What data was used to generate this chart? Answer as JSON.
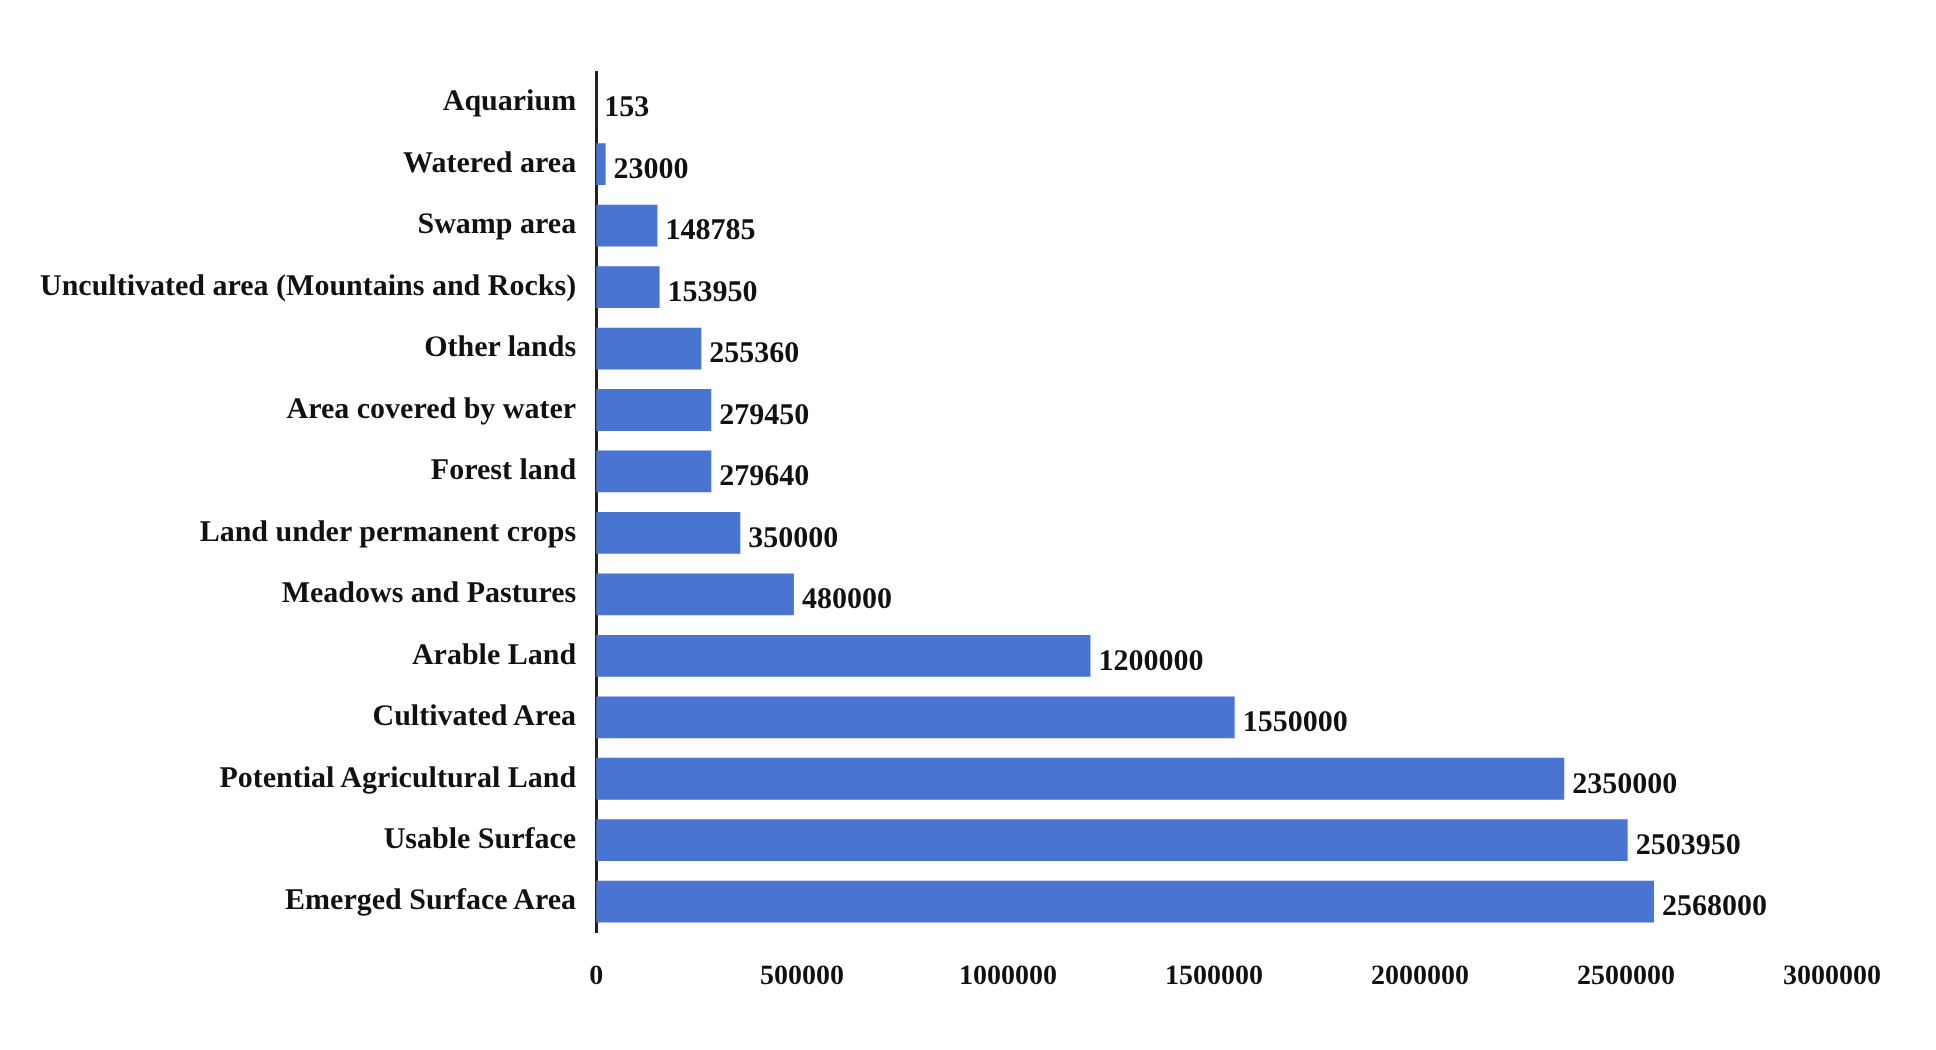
{
  "chart_data": {
    "type": "bar",
    "orientation": "horizontal",
    "categories": [
      "Aquarium",
      "Watered area",
      "Swamp area",
      "Uncultivated area (Mountains and Rocks)",
      "Other lands",
      "Area covered by water",
      "Forest land",
      "Land under permanent crops",
      "Meadows and Pastures",
      "Arable Land",
      "Cultivated Area",
      "Potential Agricultural Land",
      "Usable Surface",
      "Emerged Surface Area"
    ],
    "values": [
      153,
      23000,
      148785,
      153950,
      255360,
      279450,
      279640,
      350000,
      480000,
      1200000,
      1550000,
      2350000,
      2503950,
      2568000
    ],
    "color": "#4a74d2",
    "xlim": [
      0,
      3000000
    ],
    "xticks": [
      0,
      500000,
      1000000,
      1500000,
      2000000,
      2500000,
      3000000
    ],
    "grid": false,
    "legend": false,
    "data_labels": true
  }
}
